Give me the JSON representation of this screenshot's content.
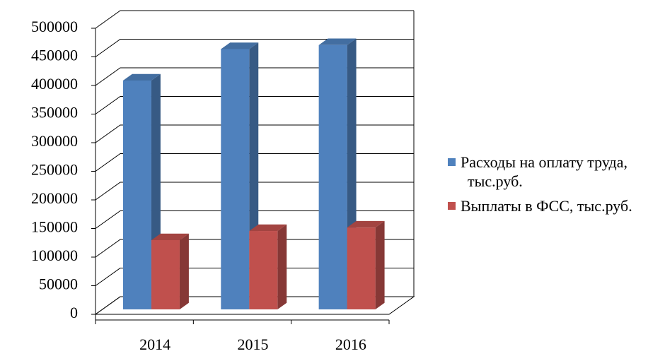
{
  "chart_data": {
    "type": "bar3d",
    "categories": [
      "2014",
      "2015",
      "2016"
    ],
    "series": [
      {
        "name": "Расходы на оплату труда, тыс.руб.",
        "color": "#4f81bd",
        "values": [
          400000,
          455000,
          462000
        ]
      },
      {
        "name": "Выплаты в ФСС, тыс.руб.",
        "color": "#c0504d",
        "values": [
          121000,
          137000,
          143000
        ]
      }
    ],
    "ylim": [
      0,
      500000
    ],
    "yticks": [
      0,
      50000,
      100000,
      150000,
      200000,
      250000,
      300000,
      350000,
      400000,
      450000,
      500000
    ],
    "grid": true,
    "legend": "right"
  }
}
